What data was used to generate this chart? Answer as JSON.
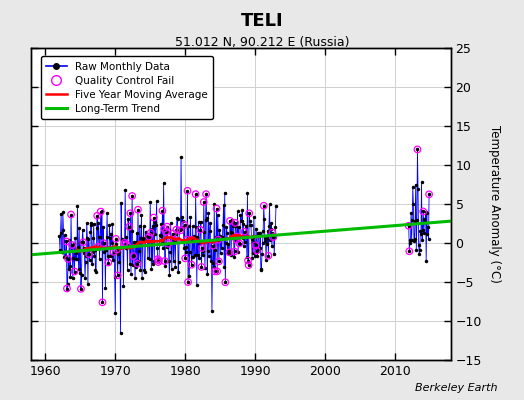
{
  "title": "TELI",
  "subtitle": "51.012 N, 90.212 E (Russia)",
  "ylabel": "Temperature Anomaly (°C)",
  "watermark": "Berkeley Earth",
  "xlim": [
    1958,
    2018
  ],
  "ylim": [
    -15,
    25
  ],
  "yticks": [
    -15,
    -10,
    -5,
    0,
    5,
    10,
    15,
    20,
    25
  ],
  "xticks": [
    1960,
    1970,
    1980,
    1990,
    2000,
    2010
  ],
  "outer_bg": "#e8e8e8",
  "plot_bg": "#ffffff",
  "grid_color": "#d0d0d0",
  "raw_color": "#0000ff",
  "ma_color": "#ff0000",
  "trend_color": "#00bb00",
  "qc_color": "#ff00ff",
  "trend_x": [
    1958,
    2018
  ],
  "trend_y": [
    -1.5,
    2.8
  ]
}
